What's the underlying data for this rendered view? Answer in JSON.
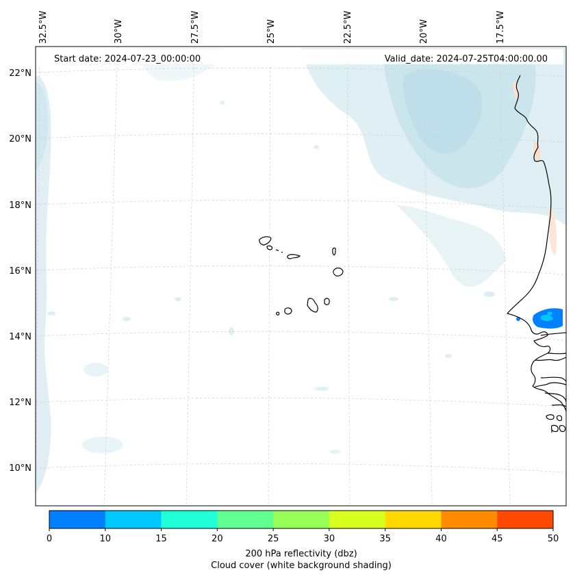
{
  "map": {
    "start_date": "Start date: 2024-07-23_00:00:00",
    "valid_date": "Valid_date: 2024-07-25T04:00:00.00",
    "lon_labels": [
      "32.5°W",
      "30°W",
      "27.5°W",
      "25°W",
      "22.5°W",
      "20°W",
      "17.5°W"
    ],
    "lat_labels": [
      "22°N",
      "20°N",
      "18°N",
      "16°N",
      "14°N",
      "12°N",
      "10°N"
    ]
  },
  "colorbar": {
    "ticks": [
      "0",
      "10",
      "15",
      "20",
      "25",
      "30",
      "35",
      "40",
      "45",
      "50"
    ],
    "colors": [
      "#0080ff",
      "#00c8ff",
      "#20ffd8",
      "#60ff90",
      "#98ff58",
      "#d8ff20",
      "#ffd800",
      "#ff8c00",
      "#ff4800"
    ],
    "label_line1": "200 hPa reflectivity (dbz)",
    "label_line2": "Cloud cover (white background shading)"
  },
  "colors": {
    "cloud": "#cfe8ee",
    "cloud_dark": "#b6dde8",
    "land": "#000000",
    "reflectivity_low": "#0080ff",
    "reflectivity_mid": "#00c8ff",
    "warm_shade": "#fbe3d3",
    "grid": "#c8c8c8"
  }
}
